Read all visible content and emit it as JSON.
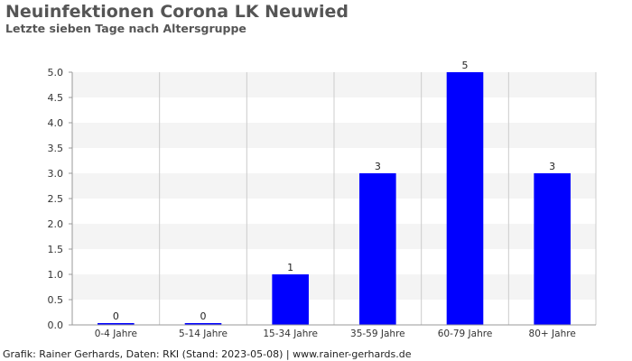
{
  "header": {
    "title": "Neuinfektionen Corona LK Neuwied",
    "subtitle": "Letzte sieben Tage nach Altersgruppe"
  },
  "footer": {
    "credit": "Grafik: Rainer Gerhards, Daten: RKI (Stand: 2023-05-08) | www.rainer-gerhards.de"
  },
  "colors": {
    "bar": "#0000ff",
    "band_light": "#f4f4f4",
    "band_white": "#ffffff",
    "grid_vertical": "#cccccc",
    "axis": "#999999"
  },
  "chart_data": {
    "type": "bar",
    "title": "Neuinfektionen Corona LK Neuwied",
    "subtitle": "Letzte sieben Tage nach Altersgruppe",
    "categories": [
      "0-4 Jahre",
      "5-14 Jahre",
      "15-34 Jahre",
      "35-59 Jahre",
      "60-79 Jahre",
      "80+ Jahre"
    ],
    "values": [
      0,
      0,
      1,
      3,
      5,
      3
    ],
    "data_labels": [
      "0",
      "0",
      "1",
      "3",
      "5",
      "3"
    ],
    "ylim": [
      0,
      5
    ],
    "yticks": [
      "0.0",
      "0.5",
      "1.0",
      "1.5",
      "2.0",
      "2.5",
      "3.0",
      "3.5",
      "4.0",
      "4.5",
      "5.0"
    ],
    "xlabel": "",
    "ylabel": "",
    "grid": true,
    "legend": "none"
  }
}
